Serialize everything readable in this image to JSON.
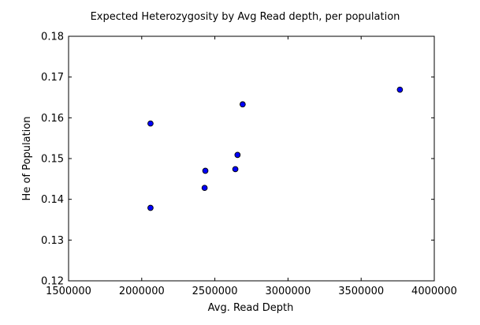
{
  "chart_data": {
    "type": "scatter",
    "title": "Expected Heterozygosity by Avg Read depth, per population",
    "xlabel": "Avg. Read Depth",
    "ylabel": "He of Population",
    "xlim": [
      1500000,
      4000000
    ],
    "ylim": [
      0.12,
      0.18
    ],
    "xticks": [
      1500000,
      2000000,
      2500000,
      3000000,
      3500000,
      4000000
    ],
    "xtick_labels": [
      "1500000",
      "2000000",
      "2500000",
      "3000000",
      "3500000",
      "4000000"
    ],
    "yticks": [
      0.12,
      0.13,
      0.14,
      0.15,
      0.16,
      0.17,
      0.18
    ],
    "ytick_labels": [
      "0.12",
      "0.13",
      "0.14",
      "0.15",
      "0.16",
      "0.17",
      "0.18"
    ],
    "grid": false,
    "marker_color": "#0000ff",
    "marker_edge_color": "#000000",
    "points": [
      {
        "x": 2060000,
        "y": 0.1586
      },
      {
        "x": 2060000,
        "y": 0.1379
      },
      {
        "x": 2430000,
        "y": 0.1428
      },
      {
        "x": 2435000,
        "y": 0.147
      },
      {
        "x": 2640000,
        "y": 0.1474
      },
      {
        "x": 2655000,
        "y": 0.1509
      },
      {
        "x": 2690000,
        "y": 0.1633
      },
      {
        "x": 3765000,
        "y": 0.1669
      }
    ]
  }
}
